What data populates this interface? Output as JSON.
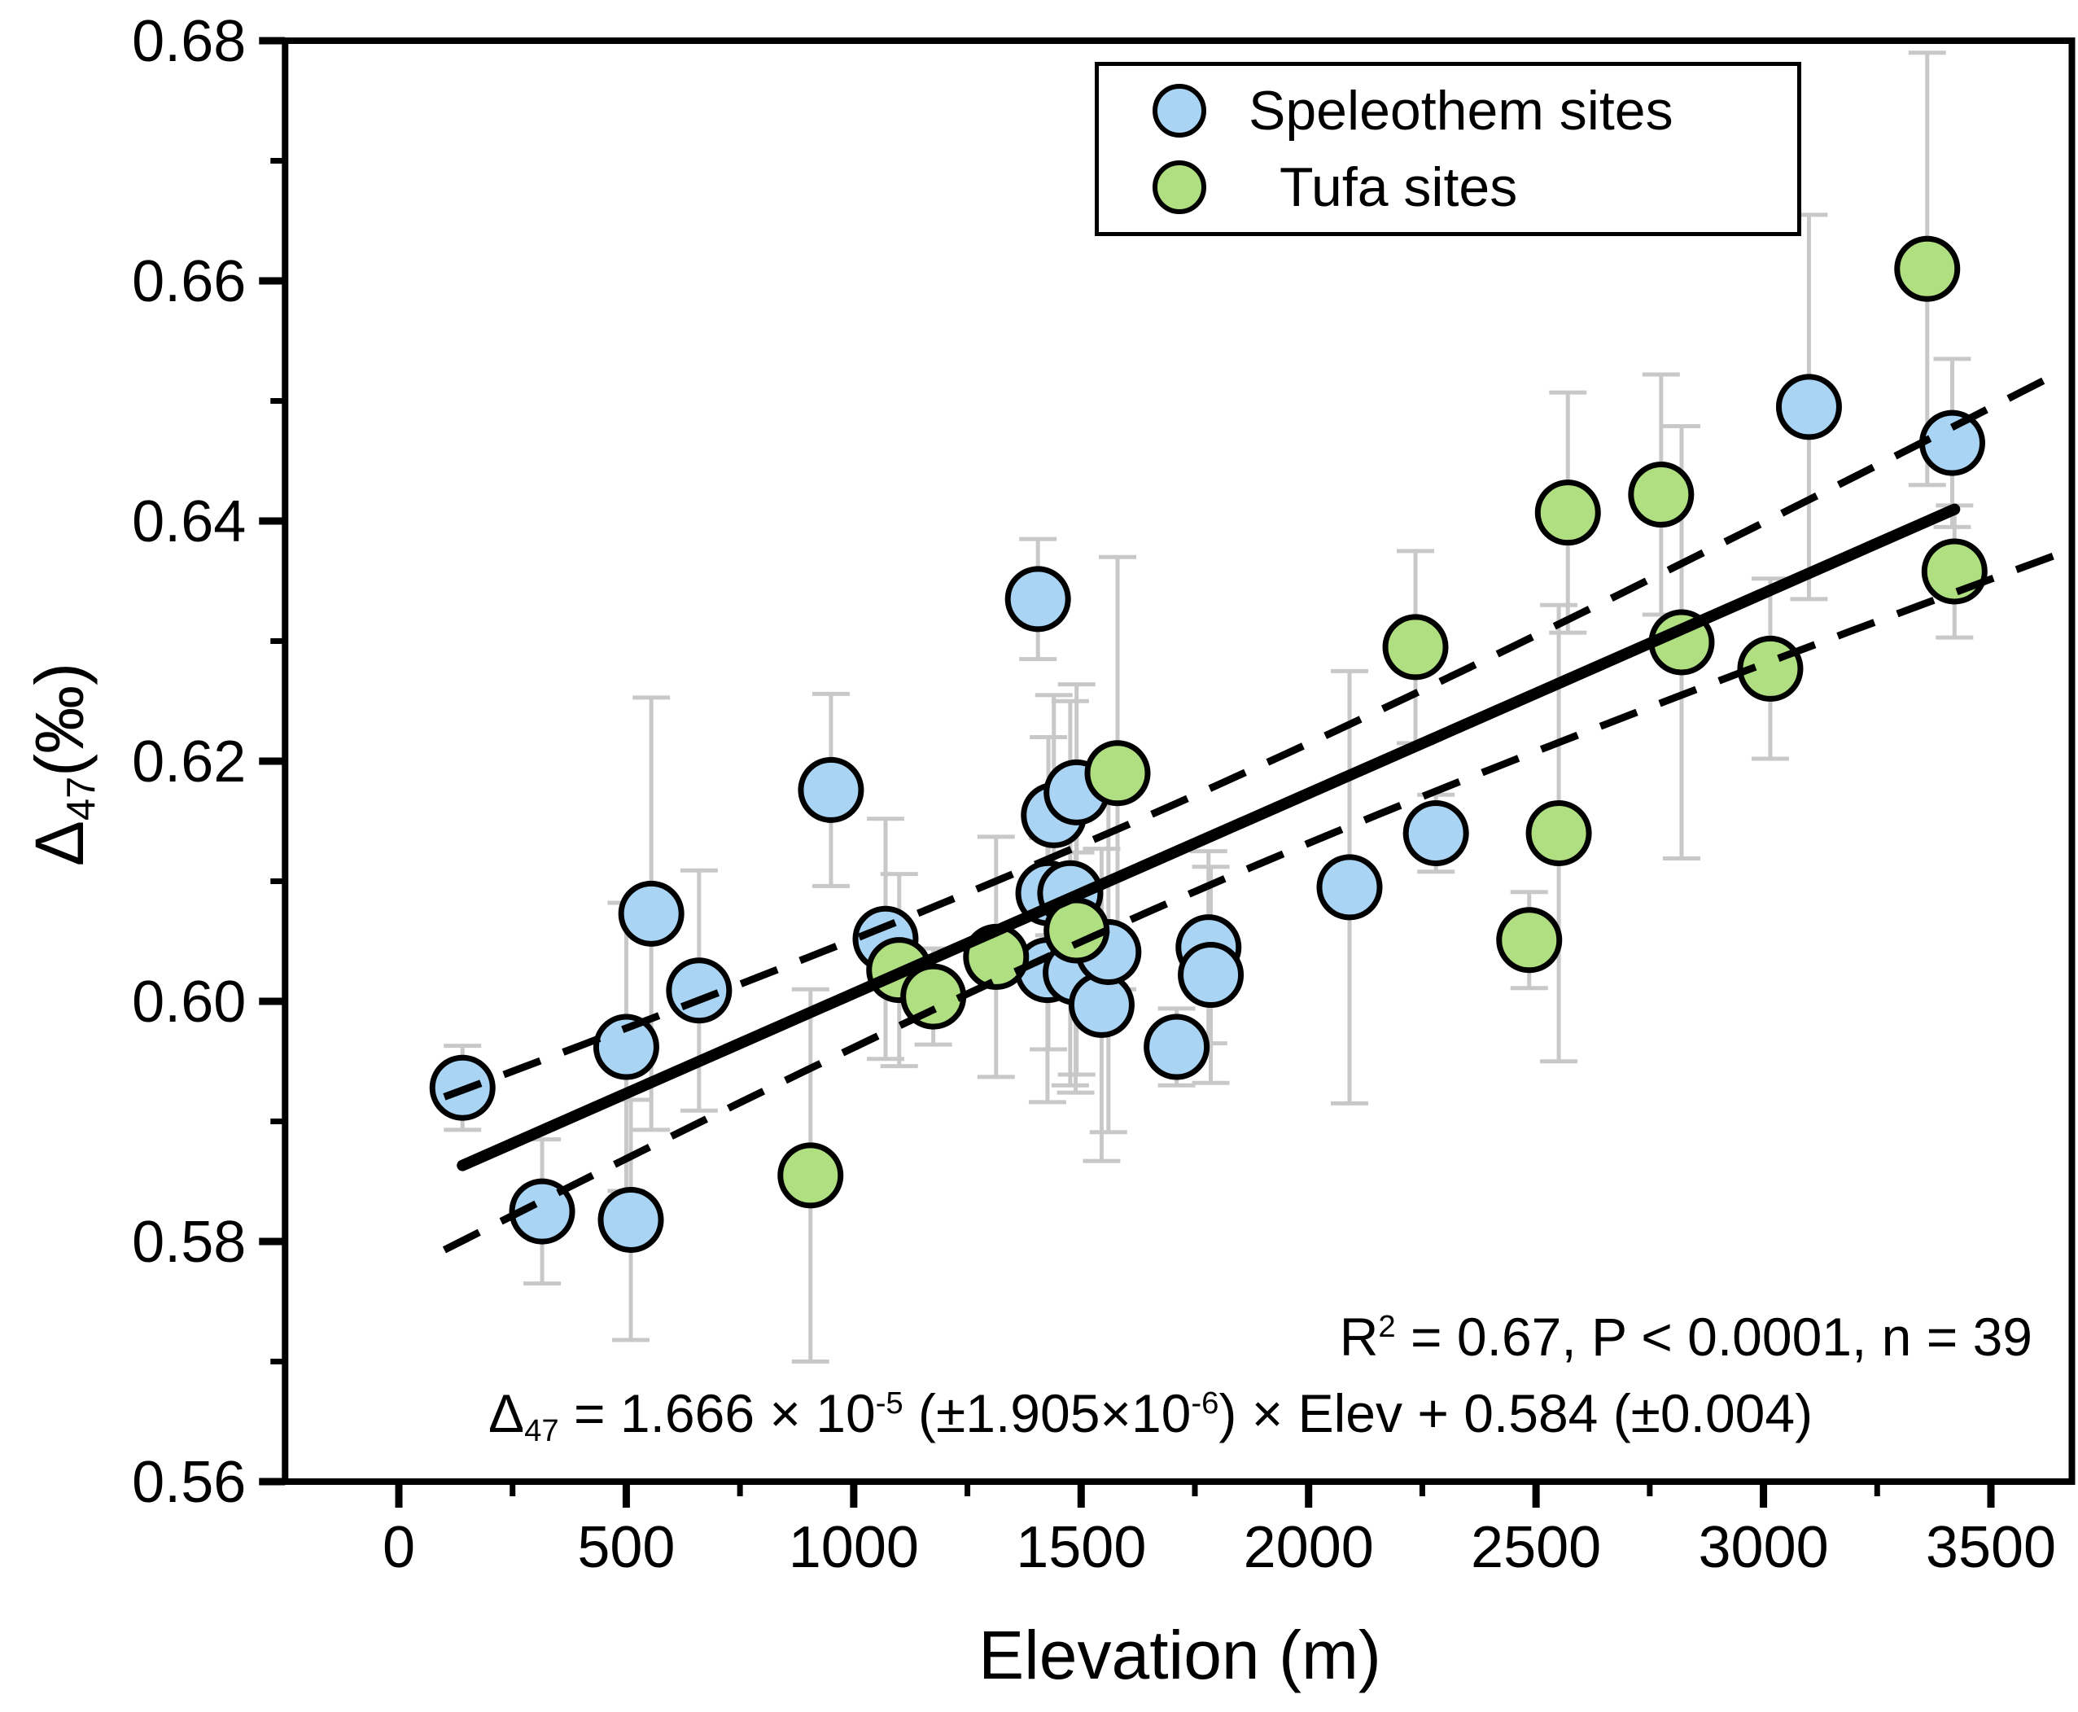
{
  "figure": {
    "background": "#ffffff"
  },
  "legend": {
    "items": [
      {
        "label": "Speleothem sites",
        "marker_color": "#a9d4f3"
      },
      {
        "label": "Tufa sites",
        "marker_color": "#afdf80"
      }
    ]
  },
  "axes": {
    "x": {
      "label": "Elevation (m)",
      "tick_labels": [
        "0",
        "500",
        "1000",
        "1500",
        "2000",
        "2500",
        "3000",
        "3500"
      ],
      "tick_values": [
        0,
        500,
        1000,
        1500,
        2000,
        2500,
        3000,
        3500
      ],
      "minor_tick_values": [
        250,
        750,
        1250,
        1750,
        2250,
        2750,
        3250
      ],
      "range": [
        -250,
        3678
      ]
    },
    "y": {
      "label_parts": [
        {
          "t": "text",
          "v": "Δ"
        },
        {
          "t": "sub",
          "v": "47"
        },
        {
          "t": "text",
          "v": "(‰)"
        }
      ],
      "tick_labels": [
        "0.56",
        "0.58",
        "0.60",
        "0.62",
        "0.64",
        "0.66",
        "0.68"
      ],
      "tick_values": [
        0.56,
        0.58,
        0.6,
        0.62,
        0.64,
        0.66,
        0.68
      ],
      "minor_tick_values": [
        0.57,
        0.59,
        0.61,
        0.63,
        0.65,
        0.67
      ],
      "range": [
        0.56,
        0.68
      ]
    }
  },
  "annotations": {
    "stats_parts": [
      {
        "t": "text",
        "v": "R"
      },
      {
        "t": "sup",
        "v": "2"
      },
      {
        "t": "text",
        "v": " = 0.67, P < 0.0001, n = 39"
      }
    ],
    "equation_parts": [
      {
        "t": "text",
        "v": "Δ"
      },
      {
        "t": "sub",
        "v": "47"
      },
      {
        "t": "text",
        "v": " = 1.666 × 10"
      },
      {
        "t": "sup",
        "v": "-5"
      },
      {
        "t": "text",
        "v": " (±1.905×10"
      },
      {
        "t": "sup",
        "v": "-6"
      },
      {
        "t": "text",
        "v": ") × Elev + 0.584 (±0.004)"
      }
    ]
  },
  "chart_data": {
    "type": "scatter",
    "title": "",
    "xlabel": "Elevation (m)",
    "ylabel": "Δ47 (‰)",
    "xlim": [
      -250,
      3678
    ],
    "ylim": [
      0.56,
      0.68
    ],
    "grid": false,
    "legend_position": "top-center",
    "error_bar_color": "#c8c8c8",
    "series": [
      {
        "name": "Speleothem sites",
        "marker": "circle",
        "fill": "#a9d4f3",
        "edge": "#000000",
        "points": [
          {
            "x": 140,
            "y": 0.5928,
            "err": 0.0035
          },
          {
            "x": 315,
            "y": 0.5825,
            "err": 0.006
          },
          {
            "x": 500,
            "y": 0.5962,
            "err": 0.012
          },
          {
            "x": 510,
            "y": 0.5818,
            "err": 0.01
          },
          {
            "x": 555,
            "y": 0.6073,
            "err": 0.018
          },
          {
            "x": 660,
            "y": 0.6009,
            "err": 0.01
          },
          {
            "x": 950,
            "y": 0.6176,
            "err": 0.008
          },
          {
            "x": 1070,
            "y": 0.6052,
            "err": 0.01
          },
          {
            "x": 1405,
            "y": 0.6335,
            "err": 0.005
          },
          {
            "x": 1426,
            "y": 0.6026,
            "err": 0.011
          },
          {
            "x": 1428,
            "y": 0.609,
            "err": 0.013
          },
          {
            "x": 1440,
            "y": 0.6155,
            "err": 0.01
          },
          {
            "x": 1476,
            "y": 0.609,
            "err": 0.016
          },
          {
            "x": 1488,
            "y": 0.6024,
            "err": 0.01
          },
          {
            "x": 1490,
            "y": 0.6174,
            "err": 0.009
          },
          {
            "x": 1545,
            "y": 0.5997,
            "err": 0.013
          },
          {
            "x": 1560,
            "y": 0.6041,
            "err": 0.015
          },
          {
            "x": 1710,
            "y": 0.5962,
            "err": 0.0032
          },
          {
            "x": 1780,
            "y": 0.6045,
            "err": 0.008
          },
          {
            "x": 1785,
            "y": 0.6022,
            "err": 0.009
          },
          {
            "x": 2090,
            "y": 0.6095,
            "err": 0.018
          },
          {
            "x": 2280,
            "y": 0.614,
            "err": 0.0032
          },
          {
            "x": 3100,
            "y": 0.6495,
            "err": 0.016
          },
          {
            "x": 3415,
            "y": 0.6465,
            "err": 0.007
          }
        ]
      },
      {
        "name": "Tufa sites",
        "marker": "circle",
        "fill": "#afdf80",
        "edge": "#000000",
        "points": [
          {
            "x": 905,
            "y": 0.5855,
            "err": 0.0155
          },
          {
            "x": 1100,
            "y": 0.6026,
            "err": 0.008
          },
          {
            "x": 1175,
            "y": 0.6004,
            "err": 0.004
          },
          {
            "x": 1313,
            "y": 0.6037,
            "err": 0.01
          },
          {
            "x": 1490,
            "y": 0.6059,
            "err": 0.012
          },
          {
            "x": 1580,
            "y": 0.619,
            "err": 0.018
          },
          {
            "x": 2235,
            "y": 0.6295,
            "err": 0.008
          },
          {
            "x": 2485,
            "y": 0.6051,
            "err": 0.004
          },
          {
            "x": 2550,
            "y": 0.614,
            "err": 0.019
          },
          {
            "x": 2570,
            "y": 0.6407,
            "err": 0.01
          },
          {
            "x": 2775,
            "y": 0.6422,
            "err": 0.01
          },
          {
            "x": 2820,
            "y": 0.6299,
            "err": 0.018
          },
          {
            "x": 3015,
            "y": 0.6277,
            "err": 0.0075
          },
          {
            "x": 3360,
            "y": 0.661,
            "err": 0.018
          },
          {
            "x": 3420,
            "y": 0.6358,
            "err": 0.0055
          }
        ]
      }
    ],
    "regression": {
      "slope": 1.666e-05,
      "slope_err": 1.905e-06,
      "intercept": 0.584,
      "intercept_err": 0.004,
      "r2": 0.67,
      "p": "< 0.0001",
      "n": 39,
      "x_start": 140,
      "x_end": 3420
    },
    "confidence_band": {
      "style": "dashed",
      "center_x": 1650,
      "half_width_at_center": 0.004,
      "spread_scale": 1250,
      "x_start": 100,
      "x_end": 3650
    }
  }
}
